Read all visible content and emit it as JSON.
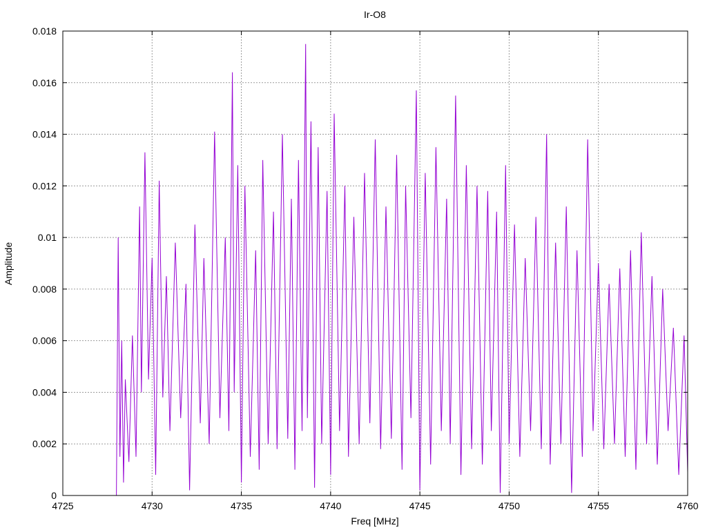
{
  "chart_data": {
    "type": "line",
    "title": "Ir-O8",
    "xlabel": "Freq [MHz]",
    "ylabel": "Amplitude",
    "xlim": [
      4725,
      4760
    ],
    "ylim": [
      0,
      0.018
    ],
    "xticks": [
      "4725",
      "4730",
      "4735",
      "4740",
      "4745",
      "4750",
      "4755",
      "4760"
    ],
    "yticks": [
      "0",
      "0.002",
      "0.004",
      "0.006",
      "0.008",
      "0.01",
      "0.012",
      "0.014",
      "0.016",
      "0.018"
    ],
    "grid": true,
    "legend": "none",
    "color": "#9400d3",
    "series": [
      {
        "x": [
          4728.0,
          4728.1,
          4728.2,
          4728.3,
          4728.4,
          4728.5,
          4728.7,
          4728.9,
          4729.1,
          4729.3,
          4729.4,
          4729.6,
          4729.8,
          4730.0,
          4730.2,
          4730.4,
          4730.6,
          4730.8,
          4731.0,
          4731.3,
          4731.6,
          4731.9,
          4732.1,
          4732.4,
          4732.7,
          4732.9,
          4733.2,
          4733.5,
          4733.8,
          4734.1,
          4734.3,
          4734.5,
          4734.6,
          4734.8,
          4735.0,
          4735.2,
          4735.5,
          4735.8,
          4736.0,
          4736.2,
          4736.5,
          4736.8,
          4737.0,
          4737.3,
          4737.6,
          4737.8,
          4738.0,
          4738.2,
          4738.4,
          4738.6,
          4738.7,
          4738.9,
          4739.1,
          4739.3,
          4739.5,
          4739.8,
          4740.0,
          4740.2,
          4740.5,
          4740.8,
          4741.0,
          4741.3,
          4741.6,
          4741.9,
          4742.2,
          4742.5,
          4742.8,
          4743.1,
          4743.4,
          4743.7,
          4744.0,
          4744.2,
          4744.5,
          4744.8,
          4745.0,
          4745.3,
          4745.6,
          4745.9,
          4746.2,
          4746.5,
          4746.7,
          4747.0,
          4747.3,
          4747.6,
          4747.9,
          4748.2,
          4748.5,
          4748.8,
          4749.0,
          4749.3,
          4749.5,
          4749.8,
          4750.0,
          4750.3,
          4750.6,
          4750.9,
          4751.2,
          4751.5,
          4751.8,
          4752.1,
          4752.3,
          4752.6,
          4752.9,
          4753.2,
          4753.5,
          4753.8,
          4754.1,
          4754.4,
          4754.7,
          4755.0,
          4755.3,
          4755.6,
          4755.9,
          4756.2,
          4756.5,
          4756.8,
          4757.1,
          4757.4,
          4757.7,
          4758.0,
          4758.3,
          4758.6,
          4758.9,
          4759.2,
          4759.5,
          4759.8,
          4760.0
        ],
        "y": [
          0.0,
          0.01,
          0.0015,
          0.006,
          0.0005,
          0.0045,
          0.0013,
          0.0062,
          0.0015,
          0.0112,
          0.004,
          0.0133,
          0.0045,
          0.0092,
          0.0008,
          0.0122,
          0.0038,
          0.0085,
          0.0025,
          0.0098,
          0.003,
          0.0082,
          0.0002,
          0.0105,
          0.0028,
          0.0092,
          0.002,
          0.0141,
          0.003,
          0.01,
          0.0025,
          0.0164,
          0.004,
          0.0128,
          0.0005,
          0.012,
          0.0015,
          0.0095,
          0.001,
          0.013,
          0.002,
          0.011,
          0.0018,
          0.014,
          0.0022,
          0.0115,
          0.001,
          0.013,
          0.0025,
          0.0175,
          0.003,
          0.0145,
          0.0003,
          0.0135,
          0.002,
          0.0118,
          0.0008,
          0.0148,
          0.0025,
          0.012,
          0.0015,
          0.0108,
          0.002,
          0.0125,
          0.0028,
          0.0138,
          0.0018,
          0.0112,
          0.0022,
          0.0132,
          0.001,
          0.012,
          0.003,
          0.0157,
          0.0002,
          0.0125,
          0.0012,
          0.0135,
          0.0025,
          0.0115,
          0.002,
          0.0155,
          0.0008,
          0.0128,
          0.0018,
          0.012,
          0.0012,
          0.0118,
          0.0025,
          0.011,
          0.0001,
          0.0128,
          0.002,
          0.0105,
          0.0015,
          0.0092,
          0.0025,
          0.0108,
          0.0018,
          0.014,
          0.0012,
          0.0098,
          0.002,
          0.0112,
          0.0001,
          0.0095,
          0.0015,
          0.0138,
          0.0025,
          0.009,
          0.0018,
          0.0082,
          0.002,
          0.0088,
          0.0015,
          0.0095,
          0.001,
          0.0102,
          0.002,
          0.0085,
          0.0012,
          0.008,
          0.0025,
          0.0065,
          0.0008,
          0.0062,
          0.0009
        ]
      }
    ]
  }
}
